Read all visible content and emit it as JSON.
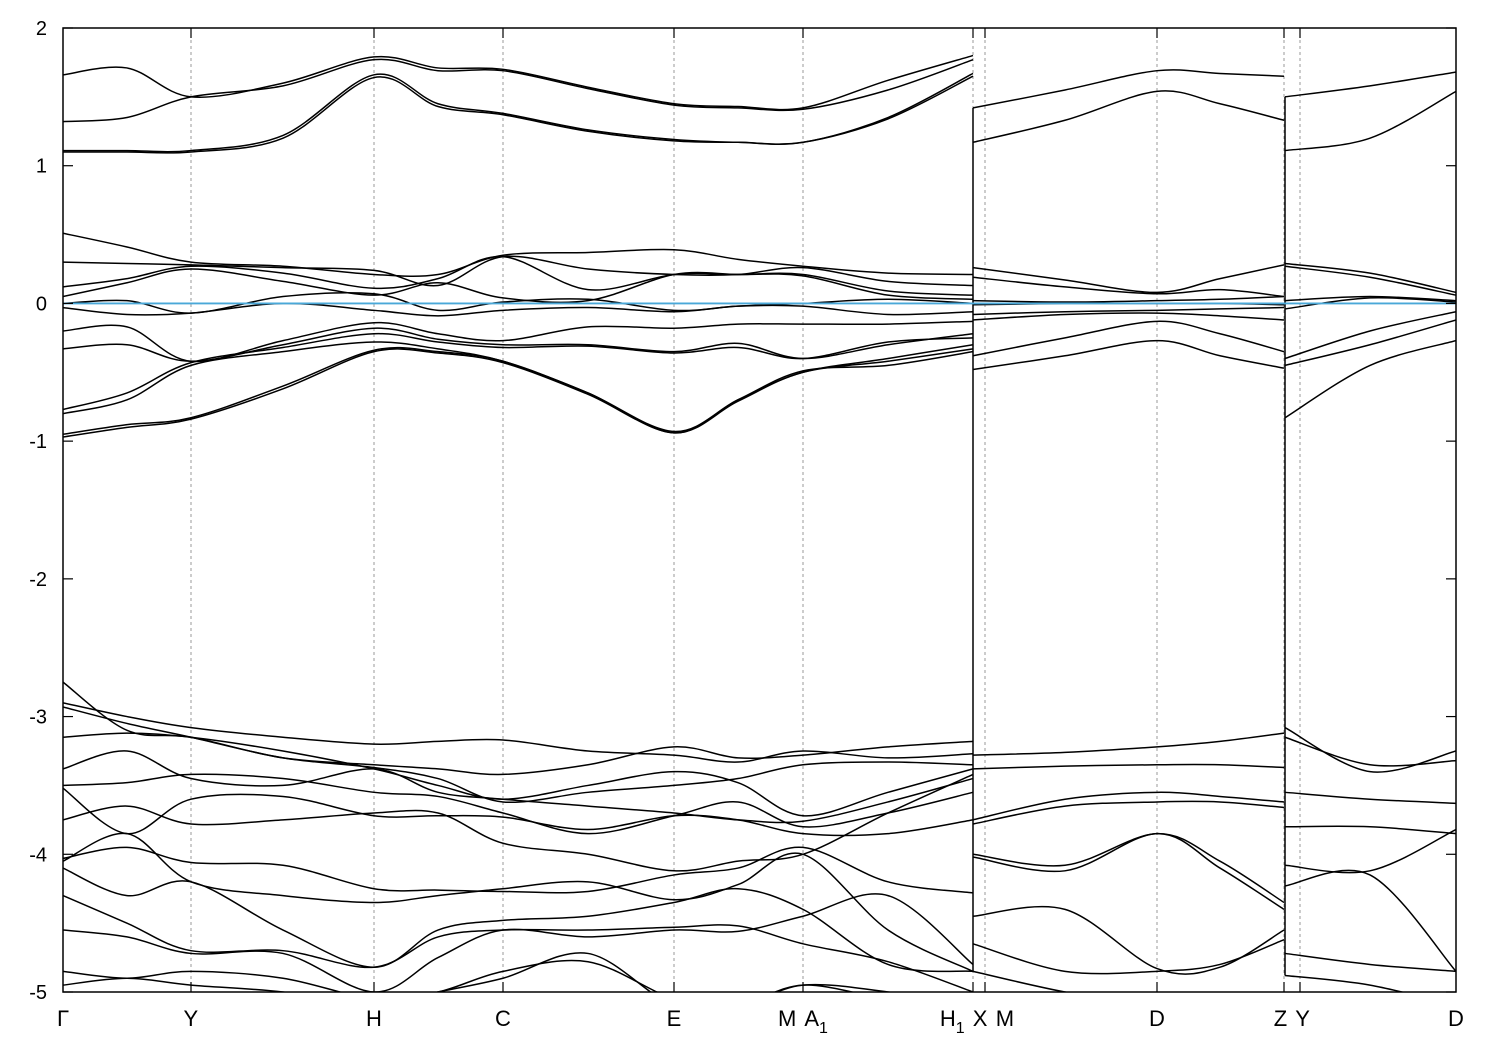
{
  "chart_data": {
    "type": "line",
    "title": "",
    "xlabel": "",
    "ylabel": "",
    "ylim": [
      -5,
      2
    ],
    "xlim": [
      0,
      13.93
    ],
    "yticks": [
      -5,
      -4,
      -3,
      -2,
      -1,
      0,
      1,
      2
    ],
    "grid": "vertical dashed at high-symmetry points",
    "band_color": "#000000",
    "fermi_level": {
      "value": 0,
      "color": "#4aa8d8"
    },
    "kpoints": [
      {
        "label": "Γ",
        "x": 0
      },
      {
        "label": "Y",
        "x": 1.28
      },
      {
        "label": "H",
        "x": 3.11
      },
      {
        "label": "C",
        "x": 4.4
      },
      {
        "label": "E",
        "x": 6.11
      },
      {
        "label": "M",
        "x": 7.4
      },
      {
        "label": "A",
        "sub": "1",
        "x": 7.4
      },
      {
        "label": "H",
        "sub": "1",
        "x": 9.1
      },
      {
        "label": "X",
        "x": 9.1
      },
      {
        "label": "M",
        "x": 9.22
      },
      {
        "label": "D",
        "x": 10.94
      },
      {
        "label": "Z",
        "x": 12.21
      },
      {
        "label": "Y",
        "x": 12.37
      },
      {
        "label": "D",
        "x": 13.93
      }
    ],
    "segments": [
      {
        "x": [
          0,
          0.64,
          1.28,
          2.2,
          3.11,
          3.75,
          4.4,
          5.25,
          6.11,
          6.75,
          7.4,
          8.25,
          9.1
        ],
        "bands": [
          [
            1.66,
            1.71,
            1.5,
            1.6,
            1.79,
            1.71,
            1.7,
            1.57,
            1.45,
            1.43,
            1.42,
            1.62,
            1.8
          ],
          [
            1.32,
            1.35,
            1.5,
            1.58,
            1.77,
            1.69,
            1.69,
            1.56,
            1.44,
            1.42,
            1.41,
            1.55,
            1.77
          ],
          [
            1.11,
            1.11,
            1.11,
            1.22,
            1.66,
            1.45,
            1.38,
            1.26,
            1.19,
            1.17,
            1.17,
            1.35,
            1.67
          ],
          [
            1.1,
            1.1,
            1.1,
            1.2,
            1.64,
            1.43,
            1.37,
            1.25,
            1.18,
            1.17,
            1.17,
            1.34,
            1.65
          ],
          [
            0.51,
            0.41,
            0.3,
            0.27,
            0.21,
            0.21,
            0.35,
            0.37,
            0.39,
            0.32,
            0.27,
            0.22,
            0.21
          ],
          [
            0.3,
            0.29,
            0.28,
            0.26,
            0.24,
            0.13,
            0.34,
            0.25,
            0.21,
            0.21,
            0.26,
            0.16,
            0.13
          ],
          [
            0.12,
            0.18,
            0.27,
            0.22,
            0.11,
            0.18,
            0.34,
            0.1,
            0.21,
            0.21,
            0.21,
            0.09,
            0.06
          ],
          [
            0.05,
            0.15,
            0.25,
            0.16,
            0.06,
            0.15,
            0.04,
            0.02,
            0.21,
            0.21,
            0.2,
            0.06,
            0.03
          ],
          [
            0.0,
            0.02,
            -0.07,
            0.05,
            0.07,
            -0.05,
            0.01,
            0.03,
            -0.05,
            -0.02,
            0.0,
            0.03,
            0.0
          ],
          [
            -0.03,
            -0.08,
            -0.07,
            0.0,
            -0.05,
            -0.09,
            -0.05,
            -0.03,
            -0.06,
            -0.02,
            -0.02,
            -0.08,
            -0.06
          ],
          [
            -0.2,
            -0.17,
            -0.42,
            -0.27,
            -0.14,
            -0.22,
            -0.27,
            -0.17,
            -0.18,
            -0.15,
            -0.15,
            -0.15,
            -0.13
          ],
          [
            -0.33,
            -0.3,
            -0.42,
            -0.3,
            -0.18,
            -0.26,
            -0.3,
            -0.3,
            -0.35,
            -0.29,
            -0.4,
            -0.3,
            -0.22
          ],
          [
            -0.77,
            -0.65,
            -0.43,
            -0.32,
            -0.22,
            -0.28,
            -0.32,
            -0.31,
            -0.36,
            -0.32,
            -0.4,
            -0.28,
            -0.25
          ],
          [
            -0.8,
            -0.7,
            -0.45,
            -0.35,
            -0.28,
            -0.33,
            -0.42,
            -0.65,
            -0.94,
            -0.7,
            -0.5,
            -0.4,
            -0.3
          ],
          [
            -0.95,
            -0.88,
            -0.83,
            -0.6,
            -0.34,
            -0.35,
            -0.42,
            -0.65,
            -0.93,
            -0.7,
            -0.49,
            -0.45,
            -0.35
          ],
          [
            -0.97,
            -0.9,
            -0.84,
            -0.62,
            -0.35,
            -0.36,
            -0.43,
            -0.66,
            -0.94,
            -0.71,
            -0.5,
            -0.42,
            -0.33
          ],
          [
            -2.75,
            -3.1,
            -3.15,
            -3.3,
            -3.35,
            -3.38,
            -3.42,
            -3.35,
            -3.22,
            -3.3,
            -3.28,
            -3.22,
            -3.18
          ],
          [
            -2.9,
            -3.0,
            -3.08,
            -3.15,
            -3.2,
            -3.18,
            -3.17,
            -3.25,
            -3.28,
            -3.33,
            -3.25,
            -3.3,
            -3.27
          ],
          [
            -2.93,
            -3.05,
            -3.15,
            -3.3,
            -3.37,
            -3.45,
            -3.62,
            -3.55,
            -3.5,
            -3.45,
            -3.35,
            -3.33,
            -3.35
          ],
          [
            -3.15,
            -3.12,
            -3.15,
            -3.25,
            -3.38,
            -3.5,
            -3.6,
            -3.5,
            -3.4,
            -3.48,
            -3.72,
            -3.55,
            -3.38
          ],
          [
            -3.38,
            -3.25,
            -3.45,
            -3.5,
            -3.38,
            -3.55,
            -3.6,
            -3.65,
            -3.7,
            -3.75,
            -3.76,
            -3.62,
            -3.45
          ],
          [
            -3.5,
            -3.48,
            -3.42,
            -3.45,
            -3.55,
            -3.58,
            -3.7,
            -3.85,
            -3.72,
            -3.62,
            -3.8,
            -3.7,
            -3.55
          ],
          [
            -3.52,
            -3.85,
            -3.6,
            -3.58,
            -3.72,
            -3.72,
            -3.73,
            -3.82,
            -3.72,
            -3.75,
            -3.85,
            -3.85,
            -3.75
          ],
          [
            -3.75,
            -3.65,
            -3.78,
            -3.75,
            -3.7,
            -3.7,
            -3.92,
            -4.0,
            -4.12,
            -4.05,
            -4.0,
            -3.7,
            -3.42
          ],
          [
            -4.03,
            -3.95,
            -4.06,
            -4.08,
            -4.25,
            -4.26,
            -4.27,
            -4.27,
            -4.15,
            -4.1,
            -3.95,
            -4.2,
            -4.28
          ],
          [
            -4.05,
            -3.85,
            -4.2,
            -4.3,
            -4.35,
            -4.3,
            -4.25,
            -4.2,
            -4.33,
            -4.22,
            -4.0,
            -4.55,
            -4.85
          ],
          [
            -4.1,
            -4.3,
            -4.2,
            -4.55,
            -4.82,
            -4.55,
            -4.48,
            -4.45,
            -4.35,
            -4.25,
            -4.4,
            -4.8,
            -4.85
          ],
          [
            -4.3,
            -4.5,
            -4.7,
            -4.7,
            -4.82,
            -4.6,
            -4.55,
            -4.55,
            -4.53,
            -4.52,
            -4.65,
            -4.78,
            -5.0
          ],
          [
            -4.55,
            -4.6,
            -4.72,
            -4.72,
            -5.0,
            -4.75,
            -4.55,
            -4.6,
            -4.55,
            -4.56,
            -4.45,
            -4.3,
            -4.8
          ],
          [
            -4.85,
            -4.9,
            -4.85,
            -4.9,
            -5.05,
            -5.0,
            -4.85,
            -4.78,
            -5.05,
            -5.1,
            -4.95,
            -5.0,
            -5.1
          ],
          [
            -4.95,
            -4.9,
            -4.95,
            -5.0,
            -5.1,
            -5.0,
            -4.9,
            -4.72,
            -5.1,
            -5.1,
            -4.95,
            -5.05,
            -5.1
          ]
        ]
      },
      {
        "x": [
          9.1,
          10.02,
          10.94,
          11.57,
          12.21
        ],
        "bands": [
          [
            1.42,
            1.55,
            1.69,
            1.67,
            1.65
          ],
          [
            1.17,
            1.33,
            1.54,
            1.45,
            1.33
          ],
          [
            0.26,
            0.17,
            0.08,
            0.18,
            0.28
          ],
          [
            0.19,
            0.12,
            0.07,
            0.1,
            0.05
          ],
          [
            0.02,
            0.01,
            0.02,
            0.03,
            0.05
          ],
          [
            -0.01,
            0.0,
            0.0,
            0.0,
            -0.01
          ],
          [
            -0.08,
            -0.06,
            -0.05,
            -0.04,
            -0.03
          ],
          [
            -0.12,
            -0.08,
            -0.07,
            -0.09,
            -0.12
          ],
          [
            -0.38,
            -0.25,
            -0.13,
            -0.22,
            -0.35
          ],
          [
            -0.48,
            -0.38,
            -0.27,
            -0.38,
            -0.47
          ],
          [
            -3.28,
            -3.26,
            -3.22,
            -3.18,
            -3.12
          ],
          [
            -3.38,
            -3.36,
            -3.35,
            -3.35,
            -3.37
          ],
          [
            -3.75,
            -3.6,
            -3.55,
            -3.58,
            -3.62
          ],
          [
            -3.78,
            -3.65,
            -3.62,
            -3.62,
            -3.66
          ],
          [
            -4.0,
            -4.08,
            -3.85,
            -4.05,
            -4.35
          ],
          [
            -4.02,
            -4.12,
            -3.85,
            -4.1,
            -4.4
          ],
          [
            -4.45,
            -4.4,
            -4.83,
            -4.82,
            -4.55
          ],
          [
            -4.65,
            -4.85,
            -4.85,
            -4.8,
            -4.62
          ],
          [
            -4.85,
            -5.0,
            -5.1,
            -5.1,
            -5.1
          ]
        ]
      },
      {
        "x": [
          12.22,
          13.07,
          13.93
        ],
        "bands": [
          [
            1.5,
            1.58,
            1.68
          ],
          [
            1.11,
            1.2,
            1.54
          ],
          [
            0.29,
            0.22,
            0.08
          ],
          [
            0.27,
            0.19,
            0.06
          ],
          [
            0.02,
            0.05,
            0.02
          ],
          [
            -0.04,
            0.04,
            0.01
          ],
          [
            -0.4,
            -0.2,
            -0.06
          ],
          [
            -0.45,
            -0.3,
            -0.12
          ],
          [
            -0.83,
            -0.45,
            -0.27
          ],
          [
            -3.08,
            -3.4,
            -3.25
          ],
          [
            -3.15,
            -3.35,
            -3.32
          ],
          [
            -3.55,
            -3.6,
            -3.63
          ],
          [
            -3.8,
            -3.8,
            -3.85
          ],
          [
            -4.08,
            -4.12,
            -3.82
          ],
          [
            -4.23,
            -4.15,
            -4.85
          ],
          [
            -4.72,
            -4.8,
            -4.85
          ],
          [
            -4.88,
            -4.95,
            -5.1
          ]
        ]
      }
    ]
  }
}
